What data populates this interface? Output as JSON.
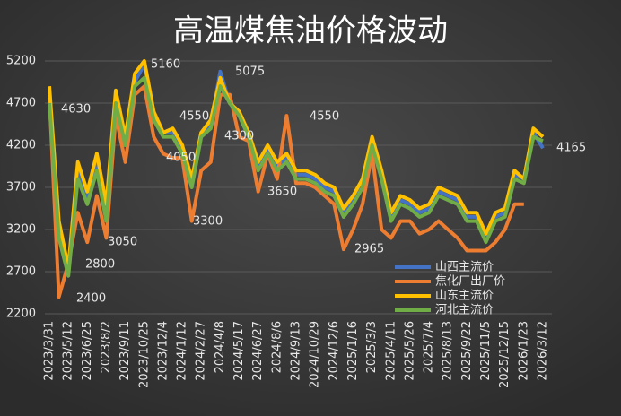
{
  "chart_data": {
    "type": "line",
    "title": "高温煤焦油价格波动",
    "categories": [
      "2023/3/31",
      null,
      "2023/5/12",
      null,
      "2023/6/25",
      null,
      "2023/8/2",
      null,
      "2023/9/11",
      null,
      "2023/10/25",
      null,
      "2023/12/4",
      null,
      "2024/1/12",
      null,
      "2024/2/27",
      null,
      "2024/4/8",
      null,
      "2024/5/17",
      null,
      "2024/6/27",
      null,
      "2024/8/6",
      null,
      "2024/9/13",
      null,
      "2024/10/29",
      null,
      "2024/12/6",
      null,
      "2025/1/16",
      null,
      "2025/3/3",
      null,
      "2025/4/11",
      null,
      "2025/5/26",
      null,
      "2025/7/4",
      null,
      "2025/8/13",
      null,
      "2025/9/22",
      null,
      "2025/11/5",
      null,
      "2025/12/15",
      null,
      "2026/1/23",
      null,
      "2026/3/12"
    ],
    "series": [
      {
        "name": "山西主流价",
        "color": "#4472c4",
        "values": [
          4750,
          3200,
          2700,
          3900,
          3550,
          4000,
          3400,
          4750,
          4250,
          4950,
          5160,
          4550,
          4350,
          4350,
          4150,
          3750,
          4350,
          4450,
          5075,
          4700,
          4550,
          4300,
          3950,
          4150,
          3950,
          4050,
          3850,
          3850,
          3800,
          3700,
          3650,
          3400,
          3550,
          3750,
          4250,
          3850,
          3350,
          3550,
          3500,
          3400,
          3450,
          3650,
          3600,
          3550,
          3350,
          3350,
          3100,
          3350,
          3400,
          3850,
          3800,
          4350,
          4165
        ]
      },
      {
        "name": "焦化厂出厂价",
        "color": "#ed7d31",
        "values": [
          4800,
          2400,
          2800,
          3400,
          3050,
          3600,
          3100,
          4550,
          4000,
          4800,
          4900,
          4300,
          4100,
          4050,
          4050,
          3300,
          3900,
          4000,
          4800,
          4800,
          4300,
          4250,
          3650,
          4100,
          3800,
          4550,
          3750,
          3750,
          3700,
          3600,
          3500,
          2965,
          3200,
          3500,
          4100,
          3200,
          3100,
          3300,
          3300,
          3150,
          3200,
          3300,
          3200,
          3100,
          2950,
          2950,
          2950,
          3050,
          3200,
          3500,
          3500,
          null,
          null
        ]
      },
      {
        "name": "山东主流价",
        "color": "#ffc000",
        "values": [
          4900,
          3300,
          2750,
          4000,
          3650,
          4100,
          3500,
          4850,
          4300,
          5050,
          5200,
          4600,
          4350,
          4400,
          4200,
          3800,
          4350,
          4500,
          5000,
          4700,
          4600,
          4350,
          4000,
          4200,
          4000,
          4100,
          3900,
          3900,
          3850,
          3750,
          3700,
          3450,
          3600,
          3800,
          4300,
          3900,
          3400,
          3600,
          3550,
          3450,
          3500,
          3700,
          3650,
          3600,
          3400,
          3400,
          3150,
          3400,
          3450,
          3900,
          3800,
          4400,
          4300
        ]
      },
      {
        "name": "河北主流价",
        "color": "#70ad47",
        "values": [
          4700,
          3100,
          2650,
          3800,
          3500,
          3900,
          3300,
          4700,
          4200,
          4900,
          5000,
          4500,
          4300,
          4300,
          4100,
          3700,
          4300,
          4400,
          4900,
          4700,
          4550,
          4300,
          3900,
          4100,
          3900,
          4000,
          3800,
          3800,
          3750,
          3650,
          3600,
          3350,
          3500,
          3700,
          4200,
          3800,
          3300,
          3500,
          3450,
          3350,
          3400,
          3600,
          3550,
          3500,
          3300,
          3300,
          3050,
          3300,
          3350,
          3800,
          3750,
          4300,
          4250
        ]
      }
    ],
    "annotations": [
      "4630",
      "5160",
      "4550",
      "4050",
      "5075",
      "4300",
      "3300",
      "3050",
      "2800",
      "2400",
      "3650",
      "4550",
      "2965",
      "4165"
    ],
    "ylim": [
      2200,
      5200
    ],
    "yticks": [
      2200,
      2700,
      3200,
      3700,
      4200,
      4700,
      5200
    ],
    "grid": true,
    "legend": "lower right"
  }
}
